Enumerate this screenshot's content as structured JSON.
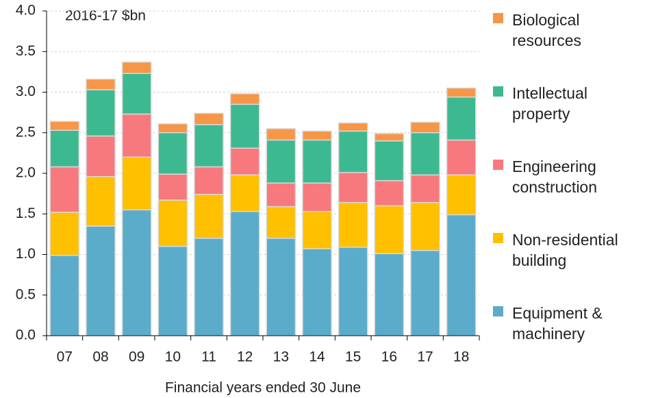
{
  "chart_data": {
    "type": "bar",
    "stacked": true,
    "annotation": "2016-17 $bn",
    "x_label": "Financial years ended 30 June",
    "categories": [
      "07",
      "08",
      "09",
      "10",
      "11",
      "12",
      "13",
      "14",
      "15",
      "16",
      "17",
      "18"
    ],
    "series": [
      {
        "name": "Equipment & machinery",
        "color": "#5BACCA",
        "values": [
          0.99,
          1.35,
          1.55,
          1.1,
          1.2,
          1.53,
          1.2,
          1.07,
          1.09,
          1.01,
          1.05,
          1.49
        ]
      },
      {
        "name": "Non-residential building",
        "color": "#FFC000",
        "values": [
          0.53,
          0.61,
          0.65,
          0.57,
          0.54,
          0.45,
          0.39,
          0.46,
          0.55,
          0.59,
          0.59,
          0.49
        ]
      },
      {
        "name": "Engineering construction",
        "color": "#F7797D",
        "values": [
          0.56,
          0.5,
          0.53,
          0.32,
          0.34,
          0.33,
          0.29,
          0.35,
          0.37,
          0.31,
          0.34,
          0.43
        ]
      },
      {
        "name": "Intellectual property",
        "color": "#3DB991",
        "values": [
          0.45,
          0.57,
          0.5,
          0.51,
          0.52,
          0.54,
          0.53,
          0.53,
          0.51,
          0.49,
          0.52,
          0.53
        ]
      },
      {
        "name": "Biological resources",
        "color": "#F79646",
        "values": [
          0.11,
          0.13,
          0.14,
          0.11,
          0.14,
          0.13,
          0.14,
          0.11,
          0.1,
          0.09,
          0.13,
          0.11
        ]
      }
    ],
    "ylim": [
      0,
      4
    ],
    "yticks": [
      {
        "value": 0,
        "label": "0.0"
      },
      {
        "value": 0.5,
        "label": "0.5"
      },
      {
        "value": 1,
        "label": "1.0"
      },
      {
        "value": 1.5,
        "label": "1.5"
      },
      {
        "value": 2,
        "label": "2.0"
      },
      {
        "value": 2.5,
        "label": "2.5"
      },
      {
        "value": 3,
        "label": "3.0"
      },
      {
        "value": 3.5,
        "label": "3.5"
      },
      {
        "value": 4,
        "label": "4.0"
      }
    ],
    "grid": true
  }
}
